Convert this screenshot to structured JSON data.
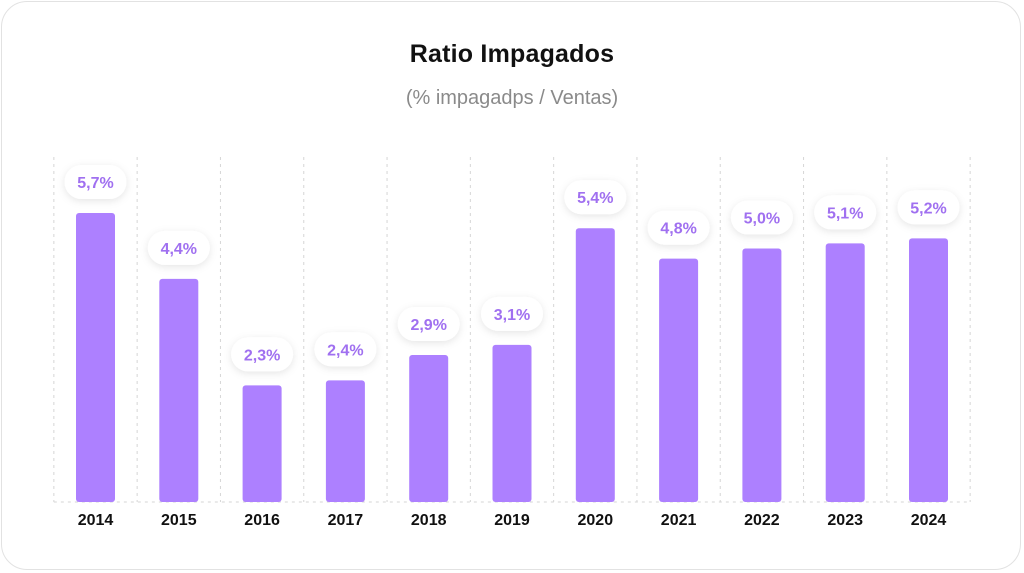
{
  "title": "Ratio Impagados",
  "subtitle": "(% impagadps / Ventas)",
  "colors": {
    "bar": "#ad80ff",
    "label_text": "#a070f0",
    "label_bg": "#ffffff",
    "grid": "#d6d6d6",
    "tick_text": "#111111"
  },
  "chart_data": {
    "type": "bar",
    "title": "Ratio Impagados",
    "subtitle": "(% impagadps / Ventas)",
    "xlabel": "",
    "ylabel": "",
    "categories": [
      "2014",
      "2015",
      "2016",
      "2017",
      "2018",
      "2019",
      "2020",
      "2021",
      "2022",
      "2023",
      "2024"
    ],
    "values": [
      5.7,
      4.4,
      2.3,
      2.4,
      2.9,
      3.1,
      5.4,
      4.8,
      5.0,
      5.1,
      5.2
    ],
    "value_labels": [
      "5,7%",
      "4,4%",
      "2,3%",
      "2,4%",
      "2,9%",
      "3,1%",
      "5,4%",
      "4,8%",
      "5,0%",
      "5,1%",
      "5,2%"
    ],
    "ylim": [
      0,
      5.7
    ],
    "grid": "vertical dashed",
    "legend": "none"
  }
}
